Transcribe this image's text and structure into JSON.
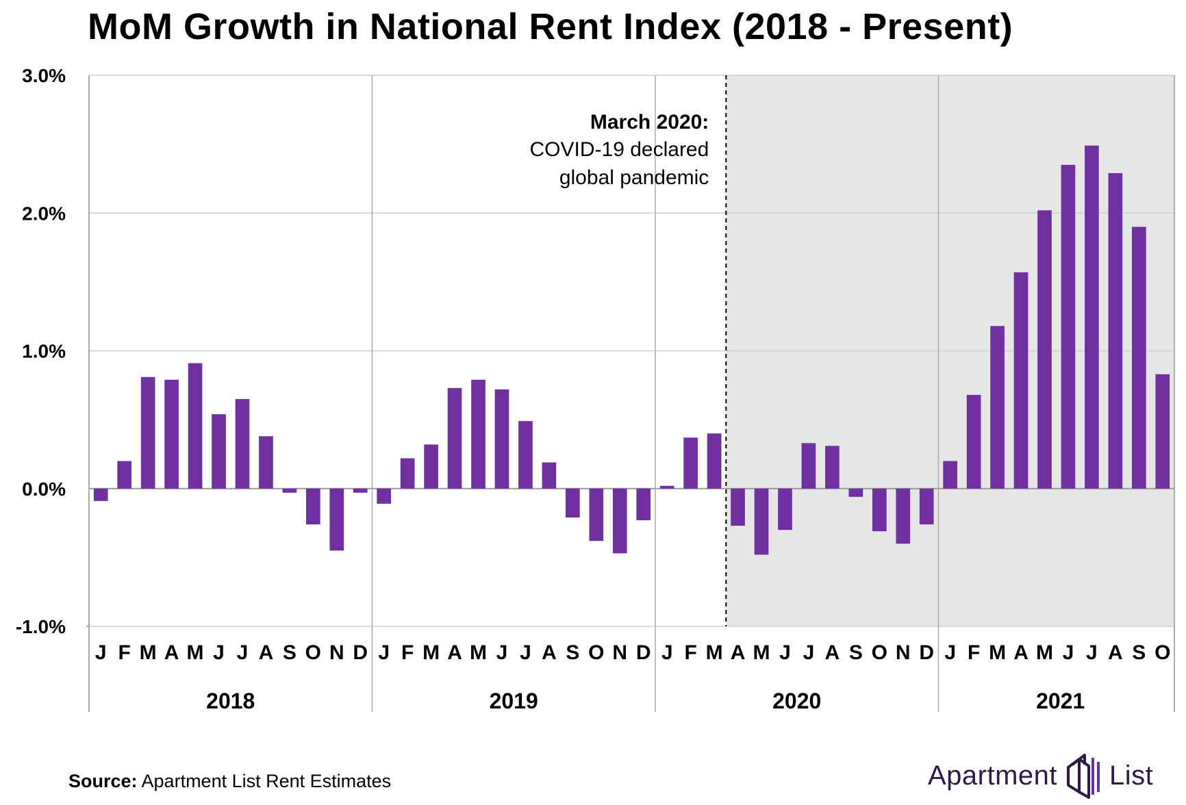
{
  "chart_data": {
    "type": "bar",
    "title": "MoM Growth in National Rent Index (2018 - Present)",
    "xlabel": "",
    "ylabel": "",
    "ylim": [
      -1.0,
      3.0
    ],
    "y_ticks": [
      "3.0%",
      "2.0%",
      "1.0%",
      "0.0%",
      "-1.0%"
    ],
    "y_tick_values": [
      3.0,
      2.0,
      1.0,
      0.0,
      -1.0
    ],
    "grid": "horizontal",
    "bar_color": "#7030a0",
    "highlight_color": "#e6e6e6",
    "years": [
      {
        "label": "2018",
        "months": [
          "J",
          "F",
          "M",
          "A",
          "M",
          "J",
          "J",
          "A",
          "S",
          "O",
          "N",
          "D"
        ]
      },
      {
        "label": "2019",
        "months": [
          "J",
          "F",
          "M",
          "A",
          "M",
          "J",
          "J",
          "A",
          "S",
          "O",
          "N",
          "D"
        ]
      },
      {
        "label": "2020",
        "months": [
          "J",
          "F",
          "M",
          "A",
          "M",
          "J",
          "J",
          "A",
          "S",
          "O",
          "N",
          "D"
        ]
      },
      {
        "label": "2021",
        "months": [
          "J",
          "F",
          "M",
          "A",
          "M",
          "J",
          "J",
          "A",
          "S",
          "O"
        ]
      }
    ],
    "values": [
      -0.09,
      0.2,
      0.81,
      0.79,
      0.91,
      0.54,
      0.65,
      0.38,
      -0.03,
      -0.26,
      -0.45,
      -0.03,
      -0.11,
      0.22,
      0.32,
      0.73,
      0.79,
      0.72,
      0.49,
      0.19,
      -0.21,
      -0.38,
      -0.47,
      -0.23,
      0.02,
      0.37,
      0.4,
      -0.27,
      -0.48,
      -0.3,
      0.33,
      0.31,
      -0.06,
      -0.31,
      -0.4,
      -0.26,
      0.2,
      0.68,
      1.18,
      1.57,
      2.02,
      2.35,
      2.49,
      2.29,
      1.9,
      0.83
    ],
    "highlight_start_index": 27,
    "annotation": {
      "index": 27,
      "bold_line": "March 2020:",
      "lines": [
        "COVID-19 declared",
        "global pandemic"
      ]
    }
  },
  "footer": {
    "source_label": "Source:",
    "source_text": "Apartment List Rent Estimates"
  },
  "logo": {
    "word_left": "Apartment",
    "word_right": "List",
    "icon": "building-stack-icon"
  }
}
